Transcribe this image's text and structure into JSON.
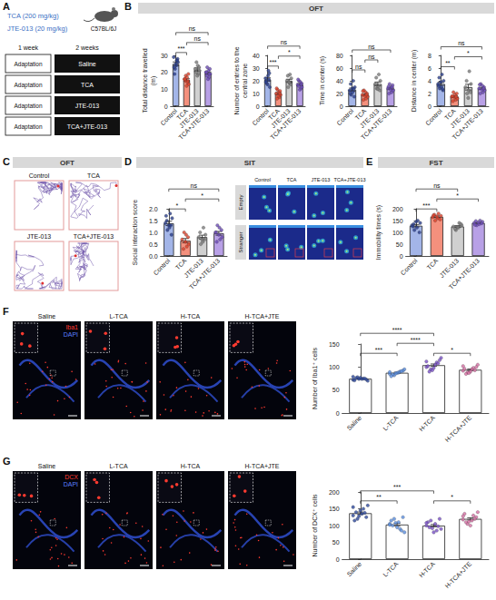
{
  "letters": [
    "A",
    "B",
    "C",
    "D",
    "E",
    "F",
    "G"
  ],
  "headers": {
    "B": "OFT",
    "C": "OFT",
    "D": "SIT",
    "E": "FST"
  },
  "schematic": {
    "drugs": [
      "TCA (200 mg/kg)",
      "JTE-013 (20 mg/kg)"
    ],
    "strain": "C57BL/6J",
    "periods": [
      "1 week",
      "2 weeks"
    ],
    "groups": [
      [
        "Adaptation",
        "Saline"
      ],
      [
        "Adaptation",
        "TCA"
      ],
      [
        "Adaptation",
        "JTE-013"
      ],
      [
        "Adaptation",
        "TCA+JTE-013"
      ]
    ]
  },
  "traces": {
    "labels": [
      "Control",
      "TCA",
      "JTE-013",
      "TCA+JTE-013"
    ]
  },
  "heatmaps": {
    "columns": [
      "Control",
      "TCA",
      "JTE-013",
      "TCA+JTE-013"
    ],
    "rows": [
      "Empty",
      "Stranger"
    ]
  },
  "micrographs": [
    {
      "titles": [
        "Saline",
        "L-TCA",
        "H-TCA",
        "H-TCA+JTE"
      ],
      "stains": [
        {
          "text": "Iba1",
          "color": "#ff3b30"
        },
        {
          "text": "DAPI",
          "color": "#5b7fff"
        }
      ]
    },
    {
      "titles": [
        "Saline",
        "L-TCA",
        "H-TCA",
        "H-TCA+JTE"
      ],
      "stains": [
        {
          "text": "DCX",
          "color": "#ff3b30"
        },
        {
          "text": "DAPI",
          "color": "#5b7fff"
        }
      ]
    }
  ],
  "chart_data": [
    {
      "type": "bar",
      "ylabel": "Total distance travelled (m)",
      "categories": [
        "Control",
        "TCA",
        "JTE-013",
        "TCA+JTE-013"
      ],
      "ylim": [
        0,
        30
      ],
      "yticks": [
        0,
        10,
        20,
        30
      ],
      "series": [
        {
          "type": "bar",
          "colors": [
            "#a3b5e8",
            "#f4907d",
            "#d0d0d0",
            "#b8a0e6"
          ],
          "values": [
            25,
            15.5,
            21.6,
            19.5
          ],
          "errors": [
            1.1,
            0.7,
            1,
            0.7
          ]
        },
        {
          "type": "scatter",
          "colors": [
            "#2b3f8c",
            "#d9412b",
            "#7a7a7a",
            "#6b4bb5"
          ],
          "values": [
            [
              29,
              27,
              22,
              26,
              24,
              19,
              28,
              25,
              23,
              27
            ],
            [
              16,
              14,
              18,
              13,
              17,
              15,
              19,
              12,
              16,
              15
            ],
            [
              22,
              19,
              26,
              21,
              24,
              20,
              23,
              18
            ],
            [
              20,
              17,
              23,
              19,
              21,
              18,
              22,
              16,
              20,
              19
            ]
          ]
        }
      ],
      "significance": [
        {
          "from": 0,
          "to": 1,
          "label": "***"
        },
        {
          "from": 1,
          "to": 3,
          "label": "ns"
        },
        {
          "from": 0,
          "to": 3,
          "label": "ns"
        }
      ]
    },
    {
      "type": "bar",
      "ylabel": "Number of entries to the central zone",
      "categories": [
        "Control",
        "TCA",
        "JTE-013",
        "TCA+JTE-013"
      ],
      "ylim": [
        0,
        40
      ],
      "yticks": [
        0,
        10,
        20,
        30,
        40
      ],
      "series": [
        {
          "type": "bar",
          "colors": [
            "#a3b5e8",
            "#f4907d",
            "#d0d0d0",
            "#b8a0e6"
          ],
          "values": [
            21,
            10,
            20,
            17
          ],
          "errors": [
            1.3,
            0.8,
            1.2,
            0.8
          ]
        },
        {
          "type": "scatter",
          "colors": [
            "#2b3f8c",
            "#d9412b",
            "#7a7a7a",
            "#6b4bb5"
          ],
          "values": [
            [
              22,
              28,
              18,
              15,
              24,
              20,
              26,
              17,
              19,
              21
            ],
            [
              10,
              7,
              13,
              9,
              11,
              6,
              12,
              8,
              14,
              10
            ],
            [
              20,
              25,
              15,
              22,
              18,
              24,
              17,
              19
            ],
            [
              17,
              14,
              20,
              15,
              19,
              16,
              18,
              13,
              21,
              17
            ]
          ]
        }
      ],
      "significance": [
        {
          "from": 0,
          "to": 1,
          "label": "***"
        },
        {
          "from": 1,
          "to": 3,
          "label": "*"
        },
        {
          "from": 0,
          "to": 3,
          "label": "ns"
        }
      ]
    },
    {
      "type": "bar",
      "ylabel": "Time in center (s)",
      "categories": [
        "Control",
        "TCA",
        "JTE-013",
        "TCA+JTE-013"
      ],
      "ylim": [
        0,
        80
      ],
      "yticks": [
        0,
        20,
        40,
        60,
        80
      ],
      "series": [
        {
          "type": "bar",
          "colors": [
            "#a3b5e8",
            "#f4907d",
            "#d0d0d0",
            "#b8a0e6"
          ],
          "values": [
            26,
            18,
            35,
            28
          ],
          "errors": [
            2.5,
            1.5,
            3,
            1.5
          ]
        },
        {
          "type": "scatter",
          "colors": [
            "#2b3f8c",
            "#d9412b",
            "#7a7a7a",
            "#6b4bb5"
          ],
          "values": [
            [
              25,
              40,
              18,
              30,
              22,
              35,
              15,
              28,
              20,
              27
            ],
            [
              18,
              12,
              25,
              15,
              22,
              10,
              20,
              16,
              24,
              18
            ],
            [
              35,
              50,
              28,
              40,
              30,
              45,
              25,
              27
            ],
            [
              28,
              22,
              35,
              25,
              30,
              20,
              33,
              26,
              31,
              30
            ]
          ]
        }
      ],
      "significance": [
        {
          "from": 0,
          "to": 1,
          "label": "ns"
        },
        {
          "from": 1,
          "to": 2,
          "label": "ns"
        },
        {
          "from": 0,
          "to": 3,
          "label": "ns"
        }
      ]
    },
    {
      "type": "bar",
      "ylabel": "Distance in center (m)",
      "categories": [
        "Control",
        "TCA",
        "JTE-013",
        "TCA+JTE-013"
      ],
      "ylim": [
        0,
        8
      ],
      "yticks": [
        0,
        2,
        4,
        6,
        8
      ],
      "series": [
        {
          "type": "bar",
          "colors": [
            "#a3b5e8",
            "#f4907d",
            "#d0d0d0",
            "#b8a0e6"
          ],
          "values": [
            3.5,
            1.5,
            3,
            2.8
          ],
          "errors": [
            0.25,
            0.14,
            0.45,
            0.16
          ]
        },
        {
          "type": "scatter",
          "colors": [
            "#2b3f8c",
            "#d9412b",
            "#7a7a7a",
            "#6b4bb5"
          ],
          "values": [
            [
              3.5,
              5,
              2.8,
              4,
              3,
              4.5,
              2.5,
              3.8,
              3.2,
              2.7
            ],
            [
              1.5,
              1,
              2.2,
              1.2,
              1.8,
              0.8,
              2,
              1.4,
              1.6,
              1.5
            ],
            [
              3,
              5.5,
              2,
              3.5,
              2.5,
              4,
              2.2,
              1.3
            ],
            [
              2.8,
              2.2,
              3.5,
              2.5,
              3.2,
              2,
              3,
              2.6,
              3.4,
              2.8
            ]
          ]
        }
      ],
      "significance": [
        {
          "from": 0,
          "to": 1,
          "label": "**"
        },
        {
          "from": 1,
          "to": 3,
          "label": "*"
        },
        {
          "from": 0,
          "to": 3,
          "label": "ns"
        }
      ]
    },
    {
      "type": "bar",
      "ylabel": "Social interaction score",
      "categories": [
        "Control",
        "TCA",
        "JTE-013",
        "TCA+JTE-013"
      ],
      "ylim": [
        0,
        2
      ],
      "yticks": [
        {
          "value": 0,
          "label": "0.0"
        },
        {
          "value": 0.5,
          "label": "0.5"
        },
        {
          "value": 1,
          "label": "1.0"
        },
        {
          "value": 1.5,
          "label": "1.5"
        },
        {
          "value": 2,
          "label": "2.0"
        }
      ],
      "series": [
        {
          "type": "bar",
          "colors": [
            "#a3b5e8",
            "#f4907d",
            "#d0d0d0",
            "#b8a0e6"
          ],
          "values": [
            1.38,
            0.65,
            0.8,
            0.96
          ],
          "errors": [
            0.09,
            0.09,
            0.08,
            0.08
          ]
        },
        {
          "type": "scatter",
          "colors": [
            "#2b3f8c",
            "#d9412b",
            "#7a7a7a",
            "#6b4bb5"
          ],
          "values": [
            [
              1.4,
              1.8,
              1.1,
              1.6,
              1.2,
              1.5,
              0.9,
              1.3,
              1.7,
              1.3
            ],
            [
              0.7,
              0.4,
              1,
              0.5,
              0.9,
              0.3,
              0.8,
              0.6
            ],
            [
              0.8,
              1.2,
              0.5,
              0.9,
              0.6,
              1,
              0.7,
              0.7
            ],
            [
              1,
              0.7,
              1.3,
              0.8,
              1.2,
              0.6,
              1.1,
              0.9,
              1
            ]
          ]
        }
      ],
      "significance": [
        {
          "from": 0,
          "to": 1,
          "label": "*"
        },
        {
          "from": 1,
          "to": 3,
          "label": "*"
        },
        {
          "from": 0,
          "to": 3,
          "label": "ns"
        }
      ]
    },
    {
      "type": "bar",
      "ylabel": "Immobility times (s)",
      "categories": [
        "Control",
        "TCA",
        "JTE-013",
        "TCA+JTE-013"
      ],
      "ylim": [
        0,
        200
      ],
      "yticks": [
        0,
        50,
        100,
        150,
        200
      ],
      "series": [
        {
          "type": "bar",
          "colors": [
            "#a3b5e8",
            "#f4907d",
            "#d0d0d0",
            "#b8a0e6"
          ],
          "values": [
            128,
            166,
            125,
            140
          ],
          "errors": [
            5,
            3.5,
            3.5,
            2.2
          ]
        },
        {
          "type": "scatter",
          "colors": [
            "#2b3f8c",
            "#d9412b",
            "#7a7a7a",
            "#6b4bb5"
          ],
          "values": [
            [
              130,
              150,
              110,
              140,
              120,
              135,
              100,
              145,
              125
            ],
            [
              165,
              180,
              150,
              170,
              160,
              175,
              155,
              168,
              172
            ],
            [
              125,
              140,
              110,
              130,
              120,
              115,
              135,
              123
            ],
            [
              140,
              150,
              130,
              145,
              135,
              148,
              138,
              142,
              132
            ]
          ]
        }
      ],
      "significance": [
        {
          "from": 0,
          "to": 1,
          "label": "***"
        },
        {
          "from": 1,
          "to": 3,
          "label": "*"
        },
        {
          "from": 0,
          "to": 2,
          "label": "ns"
        }
      ]
    },
    {
      "type": "bar",
      "ylabel": "Number of Iba1⁺ cells",
      "categories": [
        "Saline",
        "L-TCA",
        "H-TCA",
        "H-TCA+JTE"
      ],
      "ylim": [
        0,
        150
      ],
      "yticks": [
        0,
        50,
        100,
        150
      ],
      "series": [
        {
          "type": "bar",
          "colors": [
            "#ffffff",
            "#ffffff",
            "#ffffff",
            "#ffffff"
          ],
          "values": [
            74.5,
            87.4,
            104,
            94
          ],
          "errors": [
            0.8,
            1.2,
            2.6,
            1.7
          ]
        },
        {
          "type": "scatter",
          "colors": [
            "#2e4a9e",
            "#5b8fe0",
            "#7b52c8",
            "#d46fa3"
          ],
          "values": [
            [
              72,
              75,
              78,
              70,
              74,
              76,
              73,
              77,
              71,
              75,
              74,
              79
            ],
            [
              85,
              90,
              82,
              95,
              88,
              84,
              92,
              87,
              80,
              91,
              86,
              89
            ],
            [
              100,
              110,
              95,
              120,
              105,
              90,
              115,
              98,
              102,
              108,
              93,
              112
            ],
            [
              92,
              98,
              88,
              105,
              95,
              85,
              100,
              90,
              96,
              93,
              87,
              102
            ]
          ]
        }
      ],
      "significance": [
        {
          "from": 0,
          "to": 1,
          "label": "***"
        },
        {
          "from": 2,
          "to": 3,
          "label": "*"
        },
        {
          "from": 1,
          "to": 2,
          "label": "****"
        },
        {
          "from": 0,
          "to": 2,
          "label": "****"
        }
      ]
    },
    {
      "type": "bar",
      "ylabel": "Number of DCX⁺ cells",
      "categories": [
        "Saline",
        "L-TCA",
        "H-TCA",
        "H-TCA+JTE"
      ],
      "ylim": [
        0,
        200
      ],
      "yticks": [
        0,
        50,
        100,
        150,
        200
      ],
      "series": [
        {
          "type": "bar",
          "colors": [
            "#ffffff",
            "#ffffff",
            "#ffffff",
            "#ffffff"
          ],
          "values": [
            136.8,
            102.9,
            99.8,
            119.8
          ],
          "errors": [
            3.5,
            3.8,
            3.4,
            3.3
          ]
        },
        {
          "type": "scatter",
          "colors": [
            "#2e4a9e",
            "#5b8fe0",
            "#7b52c8",
            "#d46fa3"
          ],
          "values": [
            [
              130,
              150,
              120,
              160,
              135,
              140,
              125,
              145,
              115,
              138,
              128,
              155
            ],
            [
              105,
              90,
              120,
              80,
              110,
              100,
              125,
              95,
              115,
              85,
              108,
              102
            ],
            [
              100,
              85,
              115,
              90,
              105,
              95,
              120,
              80,
              110,
              98,
              92,
              108
            ],
            [
              118,
              130,
              105,
              140,
              115,
              110,
              125,
              100,
              135,
              120,
              112,
              128
            ]
          ]
        }
      ],
      "significance": [
        {
          "from": 0,
          "to": 1,
          "label": "**"
        },
        {
          "from": 2,
          "to": 3,
          "label": "*"
        },
        {
          "from": 0,
          "to": 2,
          "label": "***"
        }
      ]
    }
  ]
}
